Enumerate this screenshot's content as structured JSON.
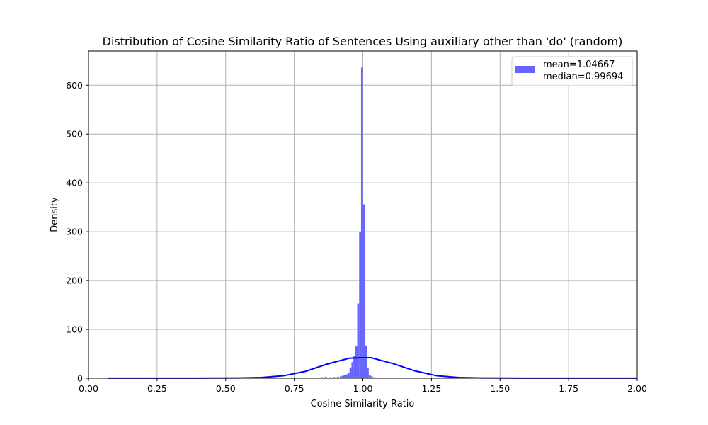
{
  "chart_data": {
    "type": "histogram",
    "title": "Distribution of Cosine Similarity Ratio of Sentences Using auxiliary other than 'do' (random)",
    "xlabel": "Cosine Similarity Ratio",
    "ylabel": "Density",
    "xlim": [
      0.0,
      2.0
    ],
    "ylim": [
      0,
      670
    ],
    "xticks": [
      "0.00",
      "0.25",
      "0.50",
      "0.75",
      "1.00",
      "1.25",
      "1.50",
      "1.75",
      "2.00"
    ],
    "yticks": [
      "0",
      "100",
      "200",
      "300",
      "400",
      "500",
      "600"
    ],
    "grid": true,
    "legend_position": "top-right",
    "legend": [
      "mean=1.04667",
      "median=0.99694"
    ],
    "colors": {
      "bars": "#6666ff",
      "kde": "#0000ff",
      "grid": "#b0b0b0"
    },
    "histogram": {
      "bin_width": 0.00713,
      "bins": [
        [
          0.635,
          0.3
        ],
        [
          0.665,
          0.5
        ],
        [
          0.695,
          0.6
        ],
        [
          0.73,
          0.5
        ],
        [
          0.765,
          0.8
        ],
        [
          0.79,
          1.0
        ],
        [
          0.81,
          1.0
        ],
        [
          0.83,
          1.5
        ],
        [
          0.85,
          2.0
        ],
        [
          0.865,
          3.0
        ],
        [
          0.88,
          2.0
        ],
        [
          0.895,
          2.5
        ],
        [
          0.91,
          3.0
        ],
        [
          0.92,
          4.0
        ],
        [
          0.927,
          5.0
        ],
        [
          0.934,
          6.0
        ],
        [
          0.941,
          8.0
        ],
        [
          0.948,
          11.0
        ],
        [
          0.955,
          22.0
        ],
        [
          0.962,
          33.0
        ],
        [
          0.969,
          45.0
        ],
        [
          0.976,
          65.0
        ],
        [
          0.983,
          153.0
        ],
        [
          0.99,
          300.0
        ],
        [
          0.997,
          636.0
        ],
        [
          1.004,
          356.0
        ],
        [
          1.011,
          67.0
        ],
        [
          1.018,
          22.0
        ],
        [
          1.025,
          6.0
        ],
        [
          1.032,
          4.0
        ],
        [
          1.04,
          2.0
        ],
        [
          1.06,
          1.0
        ],
        [
          1.09,
          1.0
        ],
        [
          1.12,
          0.8
        ],
        [
          1.16,
          0.5
        ]
      ]
    },
    "kde": {
      "x": [
        0.07,
        0.15,
        0.23,
        0.31,
        0.39,
        0.47,
        0.55,
        0.63,
        0.71,
        0.79,
        0.87,
        0.95,
        0.99,
        1.03,
        1.11,
        1.19,
        1.27,
        1.35,
        1.43,
        1.51,
        1.59,
        1.67,
        1.75,
        1.83,
        1.91,
        2.0
      ],
      "y": [
        0.2,
        0.2,
        0.2,
        0.2,
        0.2,
        0.3,
        0.5,
        1.5,
        5.0,
        14.0,
        29.0,
        41.0,
        42.0,
        42.0,
        30.0,
        15.0,
        5.0,
        1.5,
        0.5,
        0.3,
        0.2,
        0.2,
        0.2,
        0.2,
        0.2,
        0.2
      ]
    }
  }
}
